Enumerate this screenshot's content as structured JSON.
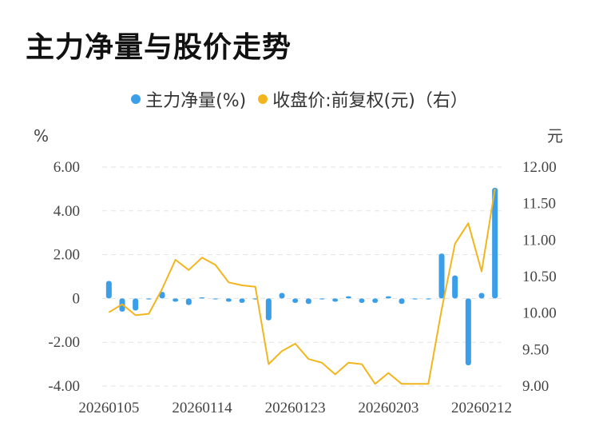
{
  "title": "主力净量与股价走势",
  "legend": [
    {
      "label": "主力净量(%)",
      "color": "#3a9ee8"
    },
    {
      "label": "收盘价:前复权(元)（右）",
      "color": "#f2b51d"
    }
  ],
  "chart_data": {
    "type": "bar+line",
    "title": "主力净量与股价走势",
    "left_unit": "%",
    "right_unit": "元",
    "left_ylim": [
      -4,
      6
    ],
    "right_ylim": [
      9,
      12
    ],
    "left_ticks": [
      "6.00",
      "4.00",
      "2.00",
      "0",
      "-2.00",
      "-4.00"
    ],
    "left_tick_values": [
      6,
      4,
      2,
      0,
      -2,
      -4
    ],
    "right_ticks": [
      "12.00",
      "11.50",
      "11.00",
      "10.50",
      "10.00",
      "9.50",
      "9.00"
    ],
    "right_tick_values": [
      12,
      11.5,
      11,
      10.5,
      10,
      9.5,
      9
    ],
    "x_tick_labels": [
      {
        "index": 0,
        "label": "20260105"
      },
      {
        "index": 7,
        "label": "20260114"
      },
      {
        "index": 14,
        "label": "20260123"
      },
      {
        "index": 21,
        "label": "20260203"
      },
      {
        "index": 28,
        "label": "20260212"
      }
    ],
    "series": [
      {
        "name": "主力净量(%)",
        "type": "bar",
        "axis": "left",
        "color": "#3a9ee8",
        "values": [
          0.8,
          -0.6,
          -0.55,
          0.0,
          0.3,
          -0.15,
          -0.3,
          0.05,
          0.0,
          -0.15,
          -0.2,
          0.0,
          -1.0,
          0.25,
          -0.2,
          -0.25,
          0.0,
          -0.15,
          0.1,
          -0.2,
          -0.2,
          0.1,
          -0.25,
          0.0,
          0.0,
          2.05,
          1.05,
          -3.05,
          0.25,
          5.05
        ]
      },
      {
        "name": "收盘价:前复权(元)（右）",
        "type": "line",
        "axis": "right",
        "color": "#f2b51d",
        "values": [
          10.01,
          10.12,
          9.97,
          9.99,
          10.33,
          10.73,
          10.59,
          10.76,
          10.66,
          10.42,
          10.38,
          10.36,
          9.3,
          9.48,
          9.58,
          9.37,
          9.32,
          9.16,
          9.32,
          9.3,
          9.03,
          9.18,
          9.03,
          9.03,
          9.03,
          10.05,
          10.95,
          11.23,
          10.57,
          11.7
        ]
      }
    ],
    "grid": "horizontal-dashed"
  }
}
